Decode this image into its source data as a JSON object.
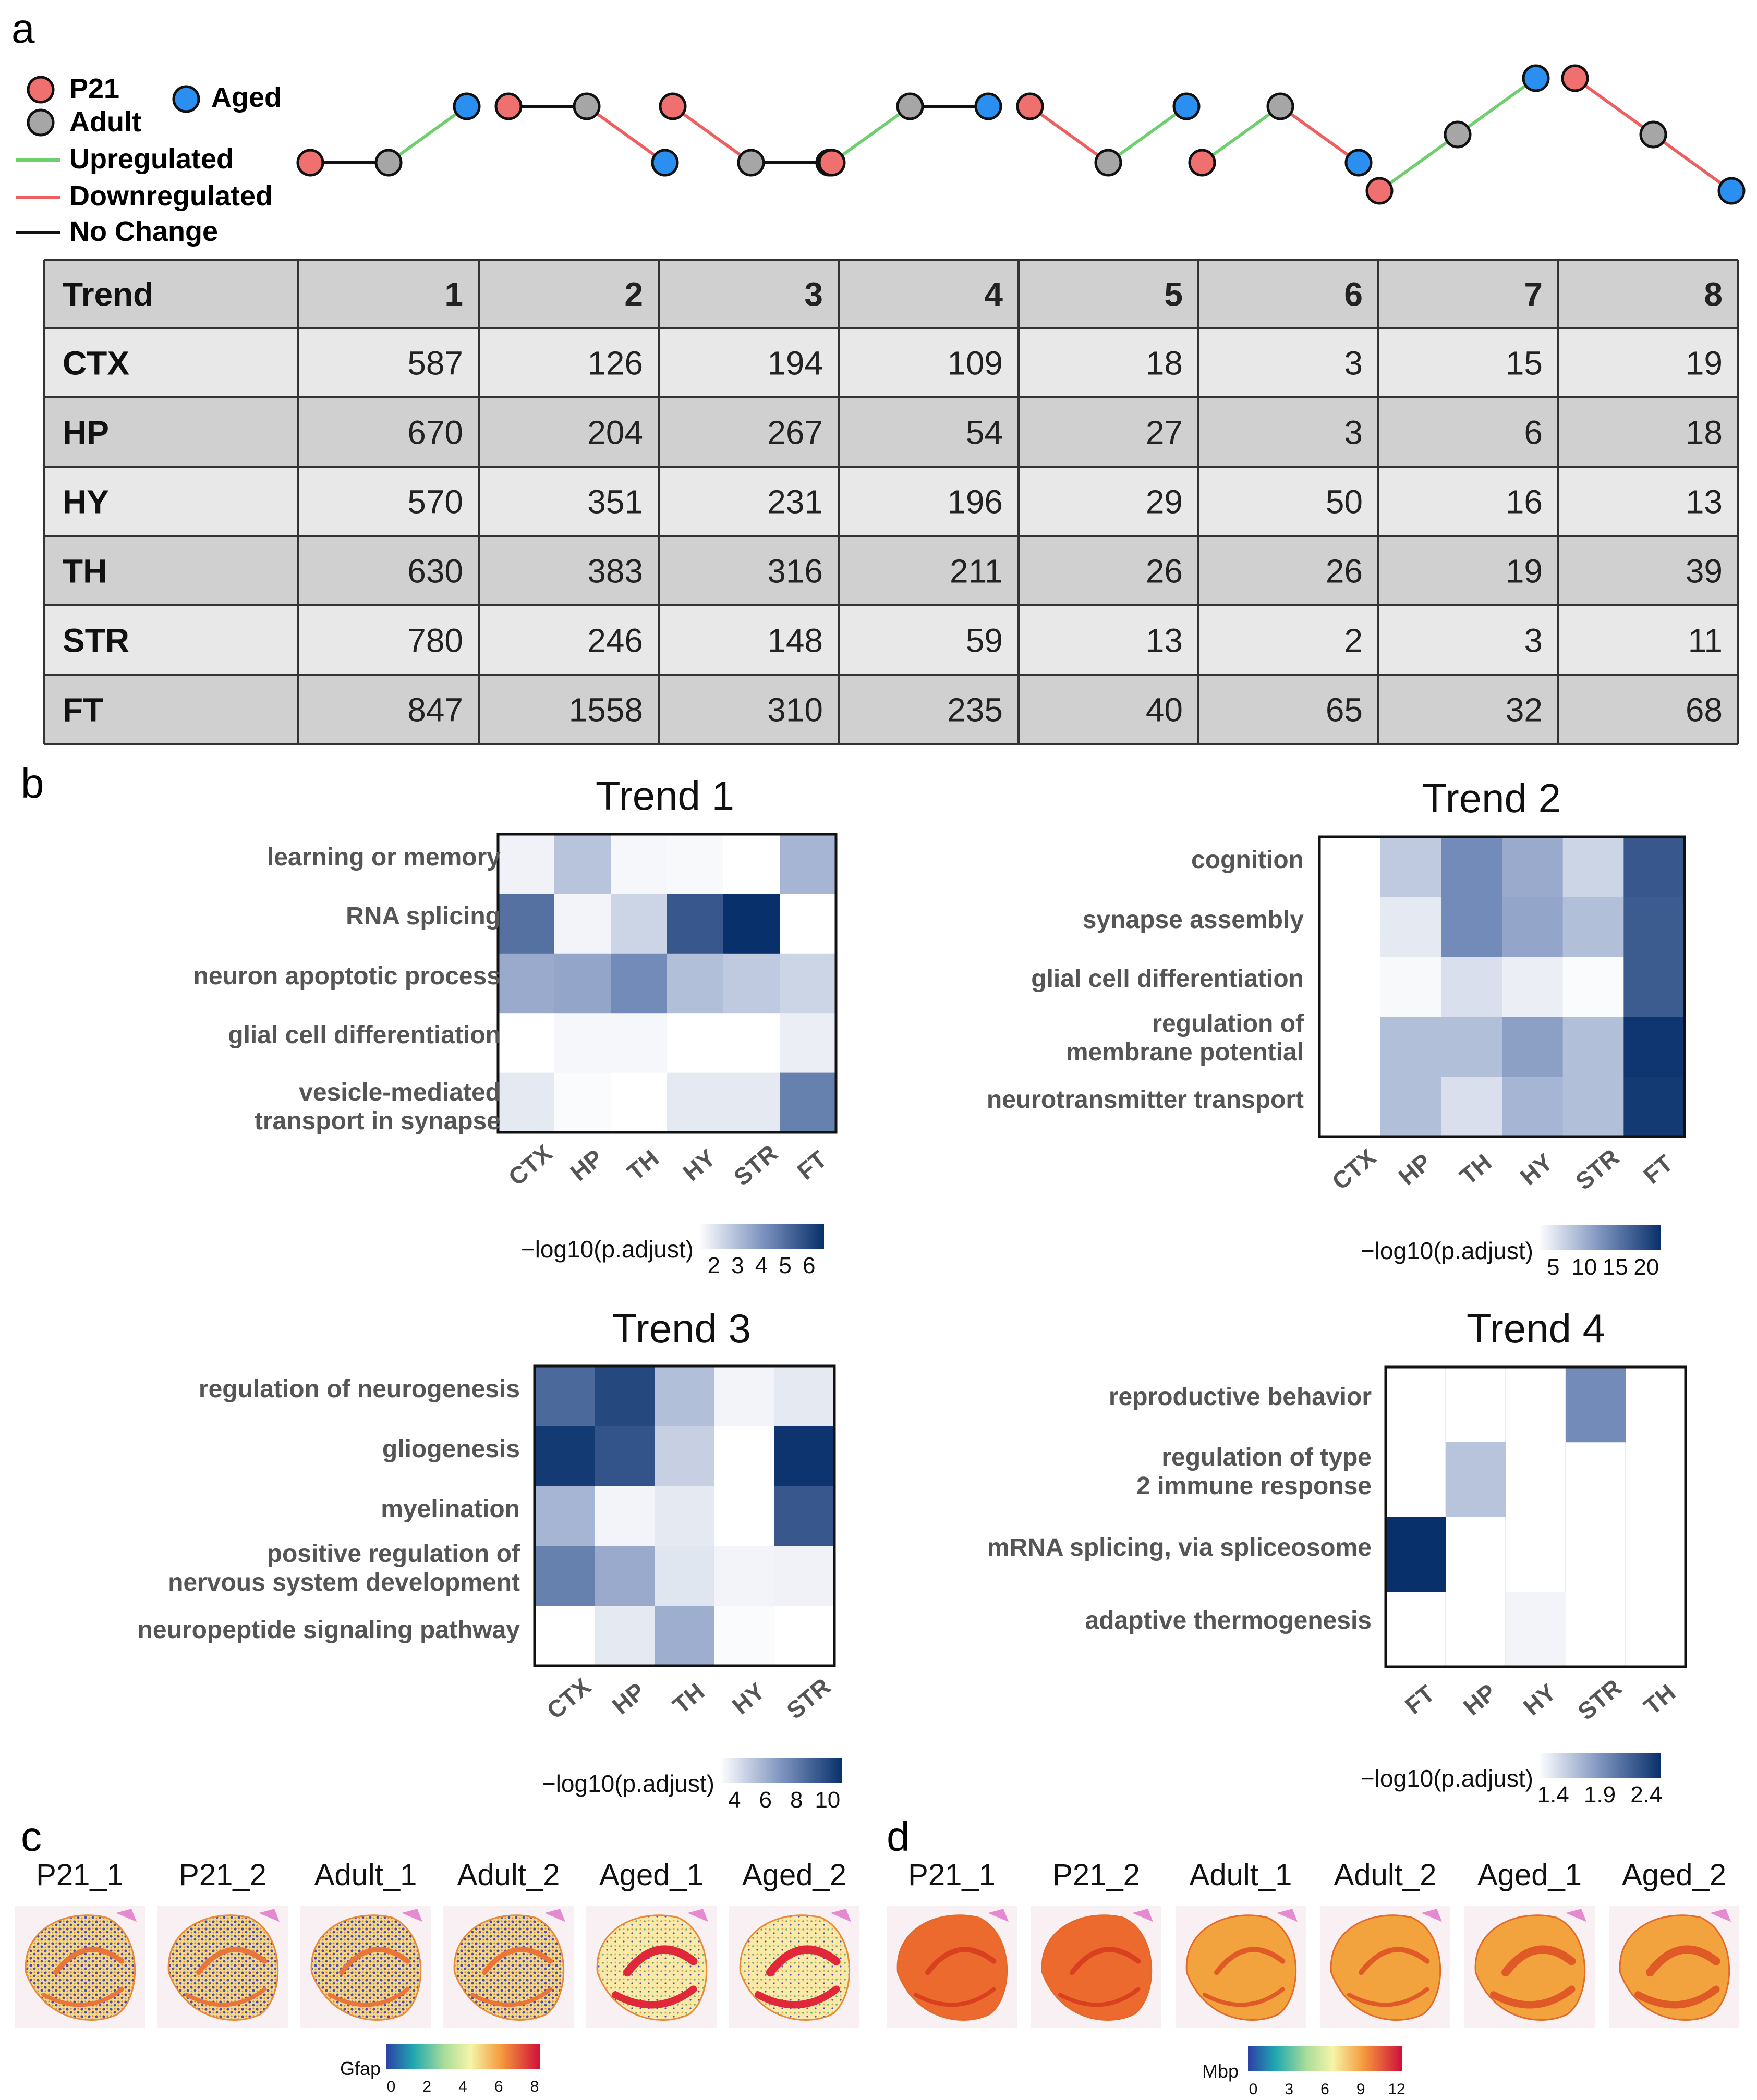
{
  "figure": {
    "panel_labels": {
      "a": "a",
      "b": "b",
      "c": "c",
      "d": "d"
    },
    "legend": {
      "p21": "P21",
      "adult": "Adult",
      "aged": "Aged",
      "up": "Upregulated",
      "down": "Downregulated",
      "nochange": "No Change"
    },
    "colors": {
      "p21": "#f07070",
      "adult": "#a6a6a6",
      "aged": "#2a8ff0",
      "up": "#6fcf6f",
      "down": "#ef5f5f",
      "nochange": "#111111",
      "grid_dark": "#d0d0d0",
      "grid_light": "#e8e8e8",
      "border": "#333333",
      "heat_low": "#ffffff",
      "heat_high": "#08306b"
    },
    "trend_patterns": [
      [
        "nochange",
        "up"
      ],
      [
        "nochange",
        "down"
      ],
      [
        "down",
        "nochange"
      ],
      [
        "up",
        "nochange"
      ],
      [
        "down",
        "up"
      ],
      [
        "up",
        "down"
      ],
      [
        "up",
        "up"
      ],
      [
        "down",
        "down"
      ]
    ],
    "table": {
      "headers": [
        "Trend",
        "1",
        "2",
        "3",
        "4",
        "5",
        "6",
        "7",
        "8"
      ],
      "rows": [
        [
          "CTX",
          "587",
          "126",
          "194",
          "109",
          "18",
          "3",
          "15",
          "19"
        ],
        [
          "HP",
          "670",
          "204",
          "267",
          "54",
          "27",
          "3",
          "6",
          "18"
        ],
        [
          "HY",
          "570",
          "351",
          "231",
          "196",
          "29",
          "50",
          "16",
          "13"
        ],
        [
          "TH",
          "630",
          "383",
          "316",
          "211",
          "26",
          "26",
          "19",
          "39"
        ],
        [
          "STR",
          "780",
          "246",
          "148",
          "59",
          "13",
          "2",
          "3",
          "11"
        ],
        [
          "FT",
          "847",
          "1558",
          "310",
          "235",
          "40",
          "65",
          "32",
          "68"
        ]
      ]
    },
    "heatmaps": [
      {
        "title": "Trend 1",
        "rows": [
          "learning or memory",
          "RNA splicing",
          "neuron apoptotic process",
          "glial cell differentiation",
          "vesicle-mediated transport in synapse"
        ],
        "cols": [
          "CTX",
          "HP",
          "TH",
          "HY",
          "STR",
          "FT"
        ],
        "values": [
          [
            0.06,
            0.28,
            0.04,
            0.03,
            0.0,
            0.35
          ],
          [
            0.68,
            0.05,
            0.2,
            0.8,
            1.0,
            0.0
          ],
          [
            0.4,
            0.42,
            0.55,
            0.3,
            0.25,
            0.2
          ],
          [
            0.0,
            0.04,
            0.04,
            0.0,
            0.0,
            0.08
          ],
          [
            0.1,
            0.02,
            0.0,
            0.1,
            0.1,
            0.6
          ]
        ],
        "legend_label": "−log10(p.adjust)",
        "legend_ticks": [
          "2",
          "3",
          "4",
          "5",
          "6"
        ]
      },
      {
        "title": "Trend 2",
        "rows": [
          "cognition",
          "synapse assembly",
          "glial cell differentiation",
          "regulation of membrane potential",
          "neurotransmitter transport"
        ],
        "cols": [
          "CTX",
          "HP",
          "TH",
          "HY",
          "STR",
          "FT"
        ],
        "values": [
          [
            0.0,
            0.25,
            0.55,
            0.4,
            0.2,
            0.8
          ],
          [
            0.0,
            0.1,
            0.55,
            0.42,
            0.3,
            0.78
          ],
          [
            0.0,
            0.03,
            0.15,
            0.08,
            0.02,
            0.78
          ],
          [
            0.0,
            0.3,
            0.3,
            0.45,
            0.3,
            0.97
          ],
          [
            0.0,
            0.3,
            0.15,
            0.35,
            0.3,
            0.95
          ]
        ],
        "legend_label": "−log10(p.adjust)",
        "legend_ticks": [
          "5",
          "10",
          "15",
          "20"
        ]
      },
      {
        "title": "Trend 3",
        "rows": [
          "regulation of neurogenesis",
          "gliogenesis",
          "myelination",
          "positive regulation of nervous system development",
          "neuropeptide signaling pathway"
        ],
        "cols": [
          "CTX",
          "HP",
          "TH",
          "HY",
          "STR"
        ],
        "values": [
          [
            0.72,
            0.88,
            0.3,
            0.05,
            0.1
          ],
          [
            0.95,
            0.82,
            0.22,
            0.0,
            0.98
          ],
          [
            0.35,
            0.05,
            0.1,
            0.0,
            0.8
          ],
          [
            0.6,
            0.4,
            0.12,
            0.05,
            0.06
          ],
          [
            0.0,
            0.1,
            0.38,
            0.02,
            0.0
          ]
        ],
        "legend_label": "−log10(p.adjust)",
        "legend_ticks": [
          "4",
          "6",
          "8",
          "10"
        ]
      },
      {
        "title": "Trend 4",
        "rows": [
          "reproductive behavior",
          "regulation of type 2 immune response",
          "mRNA splicing, via spliceosome",
          "adaptive thermogenesis"
        ],
        "cols": [
          "FT",
          "HP",
          "HY",
          "STR",
          "TH"
        ],
        "values": [
          [
            null,
            null,
            null,
            0.55,
            null
          ],
          [
            null,
            0.28,
            null,
            null,
            null
          ],
          [
            1.0,
            null,
            null,
            null,
            null
          ],
          [
            null,
            null,
            0.05,
            null,
            null
          ]
        ],
        "legend_label": "−log10(p.adjust)",
        "legend_ticks": [
          "1.4",
          "1.9",
          "2.4"
        ]
      }
    ],
    "spatial_c": {
      "samples": [
        "P21_1",
        "P21_2",
        "Adult_1",
        "Adult_2",
        "Aged_1",
        "Aged_2"
      ],
      "gene": "Gfap",
      "ticks": [
        "0",
        "2",
        "4",
        "6",
        "8"
      ]
    },
    "spatial_d": {
      "samples": [
        "P21_1",
        "P21_2",
        "Adult_1",
        "Adult_2",
        "Aged_1",
        "Aged_2"
      ],
      "gene": "Mbp",
      "ticks": [
        "0",
        "3",
        "6",
        "9",
        "12"
      ]
    }
  }
}
